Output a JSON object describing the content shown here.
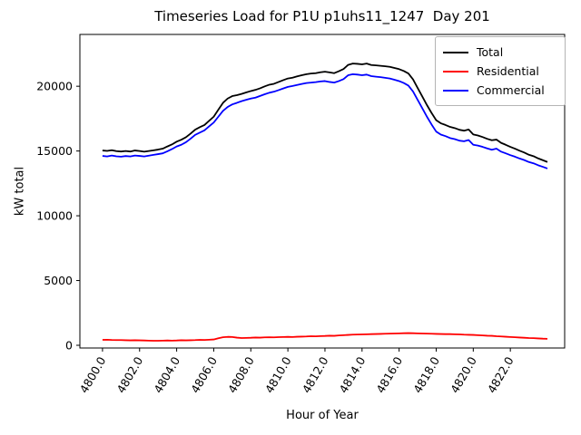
{
  "chart_data": {
    "type": "line",
    "title": "Timeseries Load for P1U p1uhs11_1247  Day 201",
    "xlabel": "Hour of Year",
    "ylabel": "kW total",
    "xlim": [
      4798.78,
      4824.93
    ],
    "ylim": [
      -210,
      24000
    ],
    "grid": false,
    "legend_position": "upper-right",
    "xtick_labels": [
      "4800.0",
      "4802.0",
      "4804.0",
      "4806.0",
      "4808.0",
      "4810.0",
      "4812.0",
      "4814.0",
      "4816.0",
      "4818.0",
      "4820.0",
      "4822.0"
    ],
    "xtick_values": [
      4800,
      4802,
      4804,
      4806,
      4808,
      4810,
      4812,
      4814,
      4816,
      4818,
      4820,
      4822
    ],
    "ytick_labels": [
      "0",
      "5000",
      "10000",
      "15000",
      "20000"
    ],
    "ytick_values": [
      0,
      5000,
      10000,
      15000,
      20000
    ],
    "x": [
      4800,
      4800.25,
      4800.5,
      4800.75,
      4801,
      4801.25,
      4801.5,
      4801.75,
      4802,
      4802.25,
      4802.5,
      4802.75,
      4803,
      4803.25,
      4803.5,
      4803.75,
      4804,
      4804.25,
      4804.5,
      4804.75,
      4805,
      4805.25,
      4805.5,
      4805.75,
      4806,
      4806.25,
      4806.5,
      4806.75,
      4807,
      4807.25,
      4807.5,
      4807.75,
      4808,
      4808.25,
      4808.5,
      4808.75,
      4809,
      4809.25,
      4809.5,
      4809.75,
      4810,
      4810.25,
      4810.5,
      4810.75,
      4811,
      4811.25,
      4811.5,
      4811.75,
      4812,
      4812.25,
      4812.5,
      4812.75,
      4813,
      4813.25,
      4813.5,
      4813.75,
      4814,
      4814.25,
      4814.5,
      4814.75,
      4815,
      4815.25,
      4815.5,
      4815.75,
      4816,
      4816.25,
      4816.5,
      4816.75,
      4817,
      4817.25,
      4817.5,
      4817.75,
      4818,
      4818.25,
      4818.5,
      4818.75,
      4819,
      4819.25,
      4819.5,
      4819.75,
      4820,
      4820.25,
      4820.5,
      4820.75,
      4821,
      4821.25,
      4821.5,
      4821.75,
      4822,
      4822.25,
      4822.5,
      4822.75,
      4823,
      4823.25,
      4823.5,
      4823.75,
      4824
    ],
    "series": [
      {
        "name": "Total",
        "color": "#000000",
        "values": [
          15040,
          15010,
          15060,
          14990,
          14960,
          15000,
          14960,
          15040,
          15000,
          14950,
          15000,
          15050,
          15110,
          15180,
          15350,
          15510,
          15720,
          15870,
          16060,
          16340,
          16650,
          16840,
          17010,
          17330,
          17650,
          18190,
          18720,
          19050,
          19240,
          19310,
          19410,
          19520,
          19630,
          19720,
          19840,
          19990,
          20120,
          20190,
          20330,
          20470,
          20600,
          20660,
          20760,
          20850,
          20930,
          20980,
          21010,
          21080,
          21120,
          21070,
          21010,
          21160,
          21330,
          21650,
          21750,
          21730,
          21690,
          21750,
          21640,
          21610,
          21580,
          21540,
          21500,
          21410,
          21320,
          21180,
          20990,
          20530,
          19870,
          19210,
          18550,
          17940,
          17380,
          17140,
          17010,
          16860,
          16770,
          16640,
          16570,
          16660,
          16280,
          16200,
          16080,
          15940,
          15830,
          15880,
          15630,
          15480,
          15320,
          15180,
          15020,
          14880,
          14710,
          14600,
          14430,
          14290,
          14150
        ]
      },
      {
        "name": "Residential",
        "color": "#ff0000",
        "values": [
          420,
          430,
          410,
          400,
          400,
          390,
          380,
          390,
          380,
          370,
          360,
          350,
          350,
          360,
          370,
          360,
          370,
          390,
          380,
          390,
          400,
          420,
          410,
          430,
          450,
          540,
          620,
          650,
          640,
          590,
          560,
          570,
          580,
          600,
          590,
          610,
          620,
          610,
          630,
          640,
          650,
          640,
          660,
          670,
          680,
          700,
          690,
          710,
          720,
          740,
          730,
          760,
          780,
          800,
          820,
          830,
          840,
          850,
          860,
          870,
          880,
          890,
          900,
          910,
          920,
          930,
          940,
          930,
          920,
          910,
          900,
          890,
          880,
          870,
          860,
          860,
          850,
          840,
          820,
          810,
          800,
          780,
          760,
          740,
          730,
          700,
          680,
          660,
          640,
          620,
          600,
          580,
          560,
          550,
          530,
          510,
          500
        ]
      },
      {
        "name": "Commercial",
        "color": "#0000ff",
        "values": [
          14620,
          14580,
          14650,
          14590,
          14560,
          14610,
          14580,
          14650,
          14620,
          14580,
          14640,
          14700,
          14760,
          14820,
          14980,
          15150,
          15350,
          15480,
          15680,
          15950,
          16250,
          16420,
          16600,
          16900,
          17200,
          17650,
          18100,
          18400,
          18600,
          18720,
          18850,
          18950,
          19050,
          19120,
          19250,
          19380,
          19500,
          19580,
          19700,
          19830,
          19950,
          20020,
          20100,
          20180,
          20250,
          20280,
          20320,
          20370,
          20400,
          20330,
          20280,
          20400,
          20550,
          20850,
          20930,
          20900,
          20850,
          20900,
          20780,
          20740,
          20700,
          20650,
          20600,
          20500,
          20400,
          20250,
          20050,
          19600,
          18950,
          18300,
          17650,
          17050,
          16500,
          16270,
          16150,
          16000,
          15920,
          15800,
          15750,
          15850,
          15480,
          15420,
          15320,
          15200,
          15100,
          15180,
          14950,
          14820,
          14680,
          14560,
          14420,
          14300,
          14150,
          14050,
          13900,
          13780,
          13650
        ]
      }
    ]
  }
}
